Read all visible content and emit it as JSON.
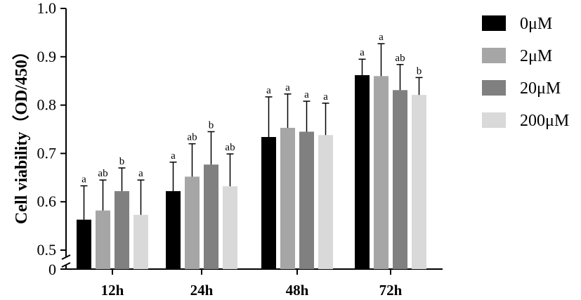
{
  "chart_data": {
    "type": "bar",
    "ylabel": "Cell viability（OD/450）",
    "ylim": [
      0.5,
      1.0
    ],
    "y_break_label": "0",
    "yticks": [
      "0.5",
      "0.6",
      "0.7",
      "0.8",
      "0.9",
      "1.0"
    ],
    "categories": [
      "12h",
      "24h",
      "48h",
      "72h"
    ],
    "legend_position": "right",
    "series": [
      {
        "name": "0μM",
        "color": "#000000",
        "values": [
          0.563,
          0.622,
          0.734,
          0.862
        ],
        "errors": [
          0.07,
          0.06,
          0.083,
          0.033
        ],
        "labels": [
          "a",
          "a",
          "a",
          "a"
        ]
      },
      {
        "name": "2μM",
        "color": "#a6a6a6",
        "values": [
          0.582,
          0.652,
          0.753,
          0.86
        ],
        "errors": [
          0.063,
          0.068,
          0.07,
          0.067
        ],
        "labels": [
          "ab",
          "ab",
          "a",
          "a"
        ]
      },
      {
        "name": "20μM",
        "color": "#808080",
        "values": [
          0.622,
          0.677,
          0.745,
          0.831
        ],
        "errors": [
          0.048,
          0.068,
          0.063,
          0.053
        ],
        "labels": [
          "b",
          "b",
          "a",
          "ab"
        ]
      },
      {
        "name": "200μM",
        "color": "#d9d9d9",
        "values": [
          0.573,
          0.632,
          0.738,
          0.821
        ],
        "errors": [
          0.072,
          0.067,
          0.066,
          0.036
        ],
        "labels": [
          "a",
          "ab",
          "a",
          "b"
        ]
      }
    ]
  }
}
